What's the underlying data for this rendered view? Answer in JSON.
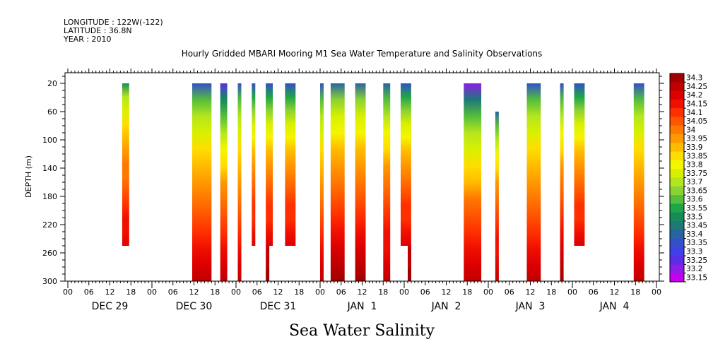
{
  "header": {
    "longitude": "LONGITUDE : 122W(-122)",
    "latitude": "LATITUDE : 36.8N",
    "year": "YEAR : 2010"
  },
  "chart_data": {
    "type": "heatmap",
    "title": "Hourly Gridded MBARI Mooring M1 Sea Water Temperature and Salinity Observations",
    "xlabel": "Sea Water Salinity",
    "ylabel": "DEPTH (m)",
    "x_hour_ticks": [
      "00",
      "06",
      "12",
      "18",
      "00",
      "06",
      "12",
      "18",
      "00",
      "06",
      "12",
      "18",
      "00",
      "06",
      "12",
      "18",
      "00",
      "06",
      "12",
      "18",
      "00",
      "06",
      "12",
      "18",
      "00",
      "06",
      "12",
      "18",
      "00"
    ],
    "x_day_labels": [
      "DEC 29",
      "DEC 30",
      "DEC 31",
      "JAN  1",
      "JAN  2",
      "JAN  3",
      "JAN  4"
    ],
    "xlim_hours": [
      0,
      168
    ],
    "y_ticks": [
      20,
      60,
      100,
      140,
      180,
      220,
      260,
      300
    ],
    "ylim": [
      300,
      5
    ],
    "colorbar_levels": [
      "34.3",
      "34.25",
      "34.2",
      "34.15",
      "34.1",
      "34.05",
      "34",
      "33.95",
      "33.9",
      "33.85",
      "33.8",
      "33.75",
      "33.7",
      "33.65",
      "33.6",
      "33.55",
      "33.5",
      "33.45",
      "33.4",
      "33.35",
      "33.3",
      "33.25",
      "33.2",
      "33.15"
    ],
    "colorbar_colors": [
      "#a00000",
      "#c00000",
      "#dc0000",
      "#f01000",
      "#ff3000",
      "#ff5500",
      "#ff7800",
      "#ff9900",
      "#ffbb00",
      "#ffdd00",
      "#f5f500",
      "#d8f000",
      "#b4e61e",
      "#8cd232",
      "#55be3c",
      "#1ea546",
      "#148c5a",
      "#1e7878",
      "#2864a0",
      "#3250c8",
      "#4040e6",
      "#5a2ee6",
      "#8c1ee6",
      "#c800f0"
    ],
    "profiles": [
      {
        "start_hour": 15.5,
        "end_hour": 17.5,
        "top": 20,
        "bottom": 250,
        "surface": 33.5,
        "bottom_val": 34.2
      },
      {
        "start_hour": 35.5,
        "end_hour": 41,
        "top": 20,
        "bottom": 300,
        "surface": 33.35,
        "bottom_val": 34.25
      },
      {
        "start_hour": 43.5,
        "end_hour": 45.5,
        "top": 20,
        "bottom": 300,
        "surface": 33.25,
        "bottom_val": 34.25
      },
      {
        "start_hour": 48.5,
        "end_hour": 49.5,
        "top": 20,
        "bottom": 300,
        "surface": 33.35,
        "bottom_val": 34.25
      },
      {
        "start_hour": 52.5,
        "end_hour": 53.5,
        "top": 20,
        "bottom": 250,
        "surface": 33.35,
        "bottom_val": 34.2
      },
      {
        "start_hour": 56.5,
        "end_hour": 58.5,
        "top": 20,
        "bottom": 250,
        "surface": 33.35,
        "bottom_val": 34.2
      },
      {
        "start_hour": 56.5,
        "end_hour": 57.5,
        "top": 250,
        "bottom": 300,
        "surface": 34.2,
        "bottom_val": 34.3
      },
      {
        "start_hour": 62,
        "end_hour": 65,
        "top": 20,
        "bottom": 250,
        "surface": 33.35,
        "bottom_val": 34.2
      },
      {
        "start_hour": 72,
        "end_hour": 73,
        "top": 20,
        "bottom": 300,
        "surface": 33.35,
        "bottom_val": 34.25
      },
      {
        "start_hour": 75,
        "end_hour": 79,
        "top": 20,
        "bottom": 300,
        "surface": 33.4,
        "bottom_val": 34.3
      },
      {
        "start_hour": 82,
        "end_hour": 85,
        "top": 20,
        "bottom": 300,
        "surface": 33.4,
        "bottom_val": 34.3
      },
      {
        "start_hour": 90,
        "end_hour": 92,
        "top": 20,
        "bottom": 300,
        "surface": 33.4,
        "bottom_val": 34.25
      },
      {
        "start_hour": 95,
        "end_hour": 98,
        "top": 20,
        "bottom": 250,
        "surface": 33.35,
        "bottom_val": 34.2
      },
      {
        "start_hour": 97,
        "end_hour": 98,
        "top": 250,
        "bottom": 300,
        "surface": 34.2,
        "bottom_val": 34.3
      },
      {
        "start_hour": 113,
        "end_hour": 118,
        "top": 20,
        "bottom": 300,
        "surface": 33.2,
        "bottom_val": 34.25
      },
      {
        "start_hour": 122,
        "end_hour": 123,
        "top": 60,
        "bottom": 300,
        "surface": 33.4,
        "bottom_val": 34.25
      },
      {
        "start_hour": 131,
        "end_hour": 135,
        "top": 20,
        "bottom": 300,
        "surface": 33.35,
        "bottom_val": 34.25
      },
      {
        "start_hour": 140.5,
        "end_hour": 141.5,
        "top": 20,
        "bottom": 300,
        "surface": 33.35,
        "bottom_val": 34.3
      },
      {
        "start_hour": 144.5,
        "end_hour": 147.5,
        "top": 20,
        "bottom": 250,
        "surface": 33.35,
        "bottom_val": 34.2
      },
      {
        "start_hour": 161.5,
        "end_hour": 164.5,
        "top": 20,
        "bottom": 300,
        "surface": 33.35,
        "bottom_val": 34.25
      }
    ]
  }
}
